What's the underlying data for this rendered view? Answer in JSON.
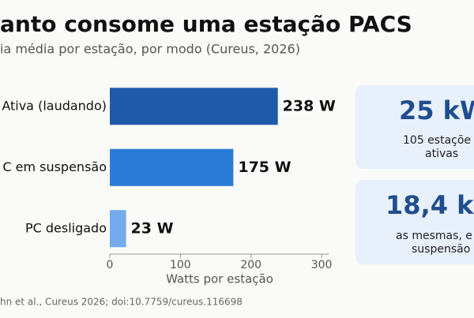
{
  "chart_data": {
    "type": "bar",
    "orientation": "horizontal",
    "title": "anto consome uma estação PACS",
    "subtitle": "ia média por estação, por modo (Cureus, 2026)",
    "categories": [
      "Ativa (laudando)",
      "C em suspensão",
      "PC desligado"
    ],
    "values": [
      238,
      175,
      23
    ],
    "value_labels": [
      "238 W",
      "175 W",
      "23 W"
    ],
    "colors": [
      "#1f5aa8",
      "#2b7bd8",
      "#75aaee"
    ],
    "xlim": [
      0,
      310
    ],
    "xticks": [
      0,
      100,
      200,
      300
    ],
    "xlabel": "Watts por estação"
  },
  "footer": "hn et al., Cureus 2026; doi:10.7759/cureus.116698",
  "cards": [
    {
      "value": "25 kW",
      "lines": [
        "105 estaçõe",
        "ativas"
      ]
    },
    {
      "value": "18,4 k",
      "lines": [
        "as mesmas, e",
        "suspensão"
      ]
    }
  ]
}
